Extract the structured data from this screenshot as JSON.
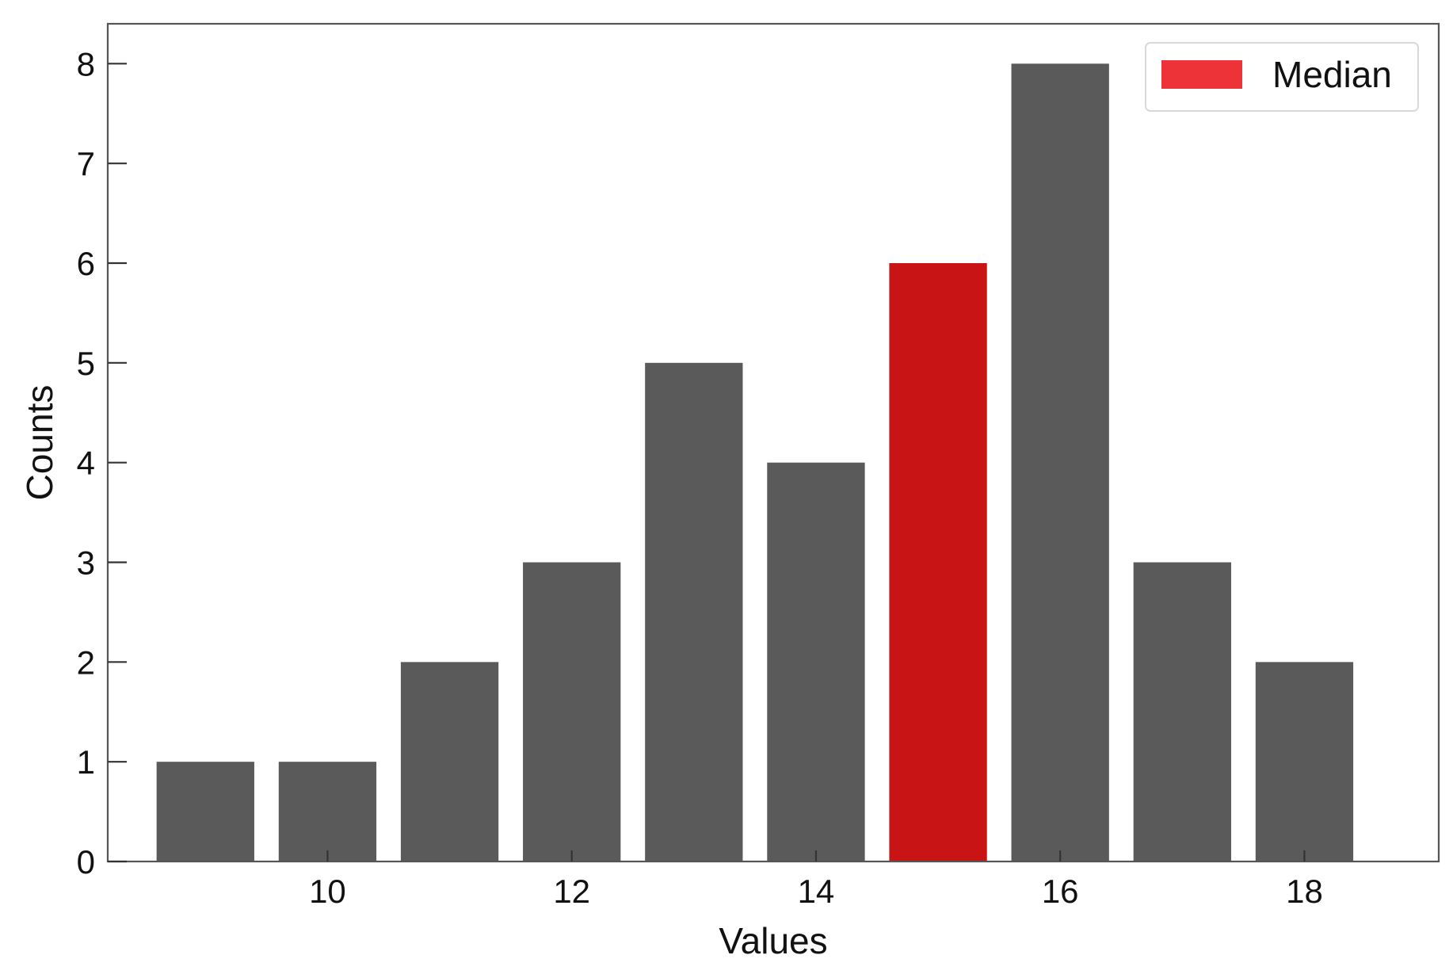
{
  "chart_data": {
    "type": "bar",
    "x": [
      9,
      10,
      11,
      12,
      13,
      14,
      15,
      16,
      17,
      18
    ],
    "values": [
      1,
      1,
      2,
      3,
      5,
      4,
      6,
      8,
      3,
      2
    ],
    "highlight_x": 15,
    "xlabel": "Values",
    "ylabel": "Counts",
    "xlim": [
      8.2,
      19.1
    ],
    "ylim": [
      0,
      8.4
    ],
    "xticks": [
      10,
      12,
      14,
      16,
      18
    ],
    "yticks": [
      0,
      1,
      2,
      3,
      4,
      5,
      6,
      7,
      8
    ],
    "grid": false,
    "legend": {
      "label": "Median",
      "placement": "top-right"
    },
    "colors": {
      "bar": "#5a5a5a",
      "highlight_bar": "#c81414",
      "legend_patch": "#ee3338",
      "axis": "#555555"
    }
  }
}
